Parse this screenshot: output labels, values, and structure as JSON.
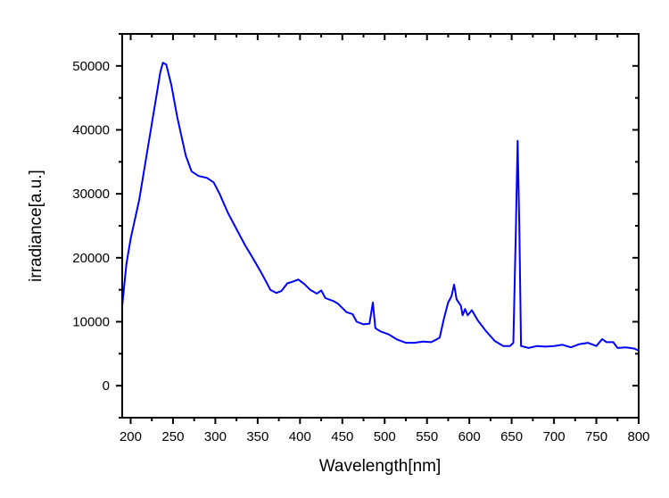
{
  "chart_data": {
    "type": "line",
    "title": "",
    "xlabel": "Wavelength[nm]",
    "ylabel": "irradiance[a.u.]",
    "xlim": [
      190,
      800
    ],
    "ylim": [
      -5000,
      55000
    ],
    "xticks": [
      200,
      250,
      300,
      350,
      400,
      450,
      500,
      550,
      600,
      650,
      700,
      750,
      800
    ],
    "yticks": [
      0,
      10000,
      20000,
      30000,
      40000,
      50000
    ],
    "grid": false,
    "legend": "none",
    "series": [
      {
        "name": "irradiance",
        "color": "#0000ff",
        "x": [
          190,
          195,
          200,
          210,
          220,
          230,
          235,
          238,
          242,
          248,
          255,
          265,
          272,
          280,
          290,
          298,
          305,
          315,
          325,
          335,
          345,
          355,
          365,
          372,
          378,
          385,
          392,
          398,
          405,
          412,
          420,
          425,
          430,
          440,
          445,
          455,
          462,
          467,
          475,
          482,
          486,
          489,
          495,
          505,
          515,
          525,
          535,
          545,
          555,
          565,
          570,
          575,
          579,
          582,
          585,
          590,
          592,
          595,
          598,
          603,
          610,
          620,
          630,
          640,
          648,
          652,
          655,
          657,
          659,
          661,
          670,
          680,
          690,
          700,
          710,
          720,
          730,
          740,
          750,
          757,
          762,
          770,
          775,
          785,
          795,
          800
        ],
        "y": [
          12500,
          19000,
          23000,
          29000,
          37000,
          45000,
          49000,
          50500,
          50200,
          47000,
          42000,
          36000,
          33500,
          32800,
          32500,
          31800,
          30000,
          27000,
          24500,
          22000,
          19800,
          17500,
          15000,
          14500,
          14800,
          16000,
          16300,
          16600,
          15900,
          15000,
          14400,
          14900,
          13700,
          13200,
          12800,
          11500,
          11200,
          10000,
          9600,
          9700,
          13000,
          9000,
          8500,
          8000,
          7200,
          6700,
          6700,
          6900,
          6800,
          7500,
          10500,
          13000,
          14000,
          15800,
          13500,
          12500,
          11000,
          12000,
          11000,
          11800,
          10200,
          8500,
          7000,
          6200,
          6200,
          6700,
          25000,
          38300,
          25000,
          6200,
          5900,
          6200,
          6100,
          6200,
          6400,
          6000,
          6500,
          6700,
          6200,
          7300,
          6800,
          6800,
          5900,
          6000,
          5800,
          5500
        ]
      }
    ]
  }
}
